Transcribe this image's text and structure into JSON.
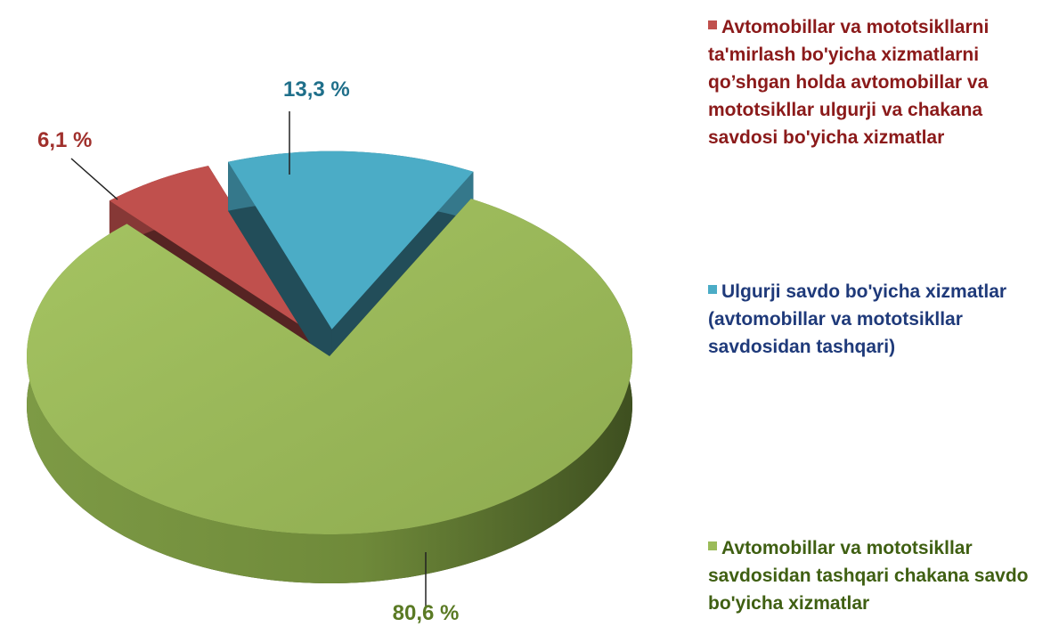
{
  "chart_data": {
    "type": "pie",
    "categories": [
      "Avtomobillar va mototsikllarni ta'mirlash bo'yicha xizmatlarni qo’shgan holda avtomobillar va mototsikllar ulgurji va chakana savdosi bo'yicha xizmatlar",
      "Ulgurji savdo bo'yicha xizmatlar (avtomobillar va mototsikllar savdosidan tashqari)",
      "Avtomobillar va mototsikllar savdosidan  tashqari chakana savdo bo'yicha xizmatlar"
    ],
    "values": [
      6.1,
      13.3,
      80.6
    ],
    "value_labels": [
      "6,1 %",
      "13,3 %",
      "80,6 %"
    ],
    "colors": [
      "#c0504d",
      "#4bacc6",
      "#9bbb59"
    ],
    "legend": "right"
  }
}
